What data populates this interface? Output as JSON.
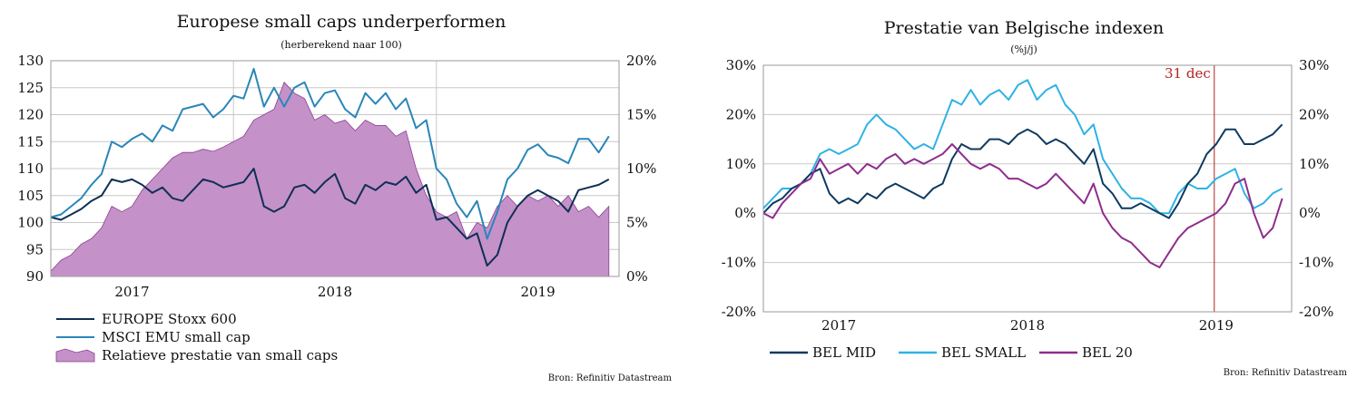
{
  "colors": {
    "stoxx": "#0e2f55",
    "msci": "#2a86b8",
    "relative": "#c591c9",
    "relative_edge": "#8a3f8f",
    "bel_mid": "#0e3a60",
    "bel_small": "#2fb2e6",
    "bel20": "#8e2d8c",
    "marker": "#b22222"
  },
  "chart_data": [
    {
      "type": "line",
      "title": "Europese small caps underperformen",
      "subtitle": "(herberekend naar 100)",
      "xlabel": "",
      "ylabel": "",
      "x_ticks": [
        "2017",
        "2018",
        "2019"
      ],
      "y_ticks_left": [
        "130",
        "125",
        "120",
        "115",
        "110",
        "105",
        "100",
        "95",
        "90"
      ],
      "y_ticks_right": [
        "20%",
        "15%",
        "10%",
        "5%",
        "0%"
      ],
      "ylim_left": [
        90,
        130
      ],
      "ylim_right": [
        0,
        20
      ],
      "xlim": [
        2016.6,
        2019.4
      ],
      "grid": true,
      "legend_position": "bottom-left",
      "series": [
        {
          "name": "EUROPE Stoxx 600",
          "axis": "left",
          "style": "line",
          "x": [
            2016.6,
            2016.65,
            2016.7,
            2016.75,
            2016.8,
            2016.85,
            2016.9,
            2016.95,
            2017.0,
            2017.05,
            2017.1,
            2017.15,
            2017.2,
            2017.25,
            2017.3,
            2017.35,
            2017.4,
            2017.45,
            2017.5,
            2017.55,
            2017.6,
            2017.65,
            2017.7,
            2017.75,
            2017.8,
            2017.85,
            2017.9,
            2017.95,
            2018.0,
            2018.05,
            2018.1,
            2018.15,
            2018.2,
            2018.25,
            2018.3,
            2018.35,
            2018.4,
            2018.45,
            2018.5,
            2018.55,
            2018.6,
            2018.65,
            2018.7,
            2018.75,
            2018.8,
            2018.85,
            2018.9,
            2018.95,
            2019.0,
            2019.05,
            2019.1,
            2019.15,
            2019.2,
            2019.25,
            2019.3,
            2019.35
          ],
          "values": [
            101,
            100.5,
            101.5,
            102.5,
            104,
            105,
            108,
            107.5,
            108,
            107,
            105.5,
            106.5,
            104.5,
            104,
            106,
            108,
            107.5,
            106.5,
            107,
            107.5,
            110,
            103,
            102,
            103,
            106.5,
            107,
            105.5,
            107.5,
            109,
            104.5,
            103.5,
            107,
            106,
            107.5,
            107,
            108.5,
            105.5,
            107,
            100.5,
            101,
            99,
            97,
            98,
            92,
            94,
            100,
            103,
            105,
            106,
            105,
            104,
            102,
            106,
            106.5,
            107,
            108
          ]
        },
        {
          "name": "MSCI EMU small cap",
          "axis": "left",
          "style": "line",
          "x": [
            2016.6,
            2016.65,
            2016.7,
            2016.75,
            2016.8,
            2016.85,
            2016.9,
            2016.95,
            2017.0,
            2017.05,
            2017.1,
            2017.15,
            2017.2,
            2017.25,
            2017.3,
            2017.35,
            2017.4,
            2017.45,
            2017.5,
            2017.55,
            2017.6,
            2017.65,
            2017.7,
            2017.75,
            2017.8,
            2017.85,
            2017.9,
            2017.95,
            2018.0,
            2018.05,
            2018.1,
            2018.15,
            2018.2,
            2018.25,
            2018.3,
            2018.35,
            2018.4,
            2018.45,
            2018.5,
            2018.55,
            2018.6,
            2018.65,
            2018.7,
            2018.75,
            2018.8,
            2018.85,
            2018.9,
            2018.95,
            2019.0,
            2019.05,
            2019.1,
            2019.15,
            2019.2,
            2019.25,
            2019.3,
            2019.35
          ],
          "values": [
            101,
            101.5,
            103,
            104.5,
            107,
            109,
            115,
            114,
            115.5,
            116.5,
            115,
            118,
            117,
            121,
            121.5,
            122,
            119.5,
            121,
            123.5,
            123,
            128.5,
            121.5,
            125,
            121.5,
            125,
            126,
            121.5,
            124,
            124.5,
            121,
            119.5,
            124,
            122,
            124,
            121,
            123,
            117.5,
            119,
            110,
            108,
            103.5,
            101,
            104,
            97,
            102,
            108,
            110,
            113.5,
            114.5,
            112.5,
            112,
            111,
            115.5,
            115.5,
            113,
            116
          ]
        },
        {
          "name": "Relatieve prestatie van small caps",
          "axis": "right",
          "style": "area",
          "x": [
            2016.6,
            2016.65,
            2016.7,
            2016.75,
            2016.8,
            2016.85,
            2016.9,
            2016.95,
            2017.0,
            2017.05,
            2017.1,
            2017.15,
            2017.2,
            2017.25,
            2017.3,
            2017.35,
            2017.4,
            2017.45,
            2017.5,
            2017.55,
            2017.6,
            2017.65,
            2017.7,
            2017.75,
            2017.8,
            2017.85,
            2017.9,
            2017.95,
            2018.0,
            2018.05,
            2018.1,
            2018.15,
            2018.2,
            2018.25,
            2018.3,
            2018.35,
            2018.4,
            2018.45,
            2018.5,
            2018.55,
            2018.6,
            2018.65,
            2018.7,
            2018.75,
            2018.8,
            2018.85,
            2018.9,
            2018.95,
            2019.0,
            2019.05,
            2019.1,
            2019.15,
            2019.2,
            2019.25,
            2019.3,
            2019.35
          ],
          "values": [
            0.5,
            1.5,
            2,
            3,
            3.5,
            4.5,
            6.5,
            6,
            6.5,
            8,
            9,
            10,
            11,
            11.5,
            11.5,
            11.8,
            11.6,
            12,
            12.5,
            13,
            14.5,
            15,
            15.5,
            18,
            17,
            16.5,
            14.5,
            15,
            14.2,
            14.5,
            13.5,
            14.5,
            14,
            14,
            13,
            13.5,
            10,
            7.5,
            6,
            5.5,
            6,
            3.5,
            5,
            4.5,
            6.5,
            7.5,
            6.5,
            7.5,
            7,
            7.5,
            6.5,
            7.5,
            6,
            6.5,
            5.5,
            6.5
          ]
        }
      ]
    },
    {
      "type": "line",
      "title": "Prestatie van Belgische indexen",
      "subtitle": "(%j/j)",
      "xlabel": "",
      "ylabel": "",
      "x_ticks": [
        "2017",
        "2018",
        "2019"
      ],
      "y_ticks_left": [
        "30%",
        "20%",
        "10%",
        "0%",
        "-10%",
        "-20%"
      ],
      "y_ticks_right": [
        "30%",
        "20%",
        "10%",
        "0%",
        "-10%",
        "-20%"
      ],
      "ylim": [
        -20,
        30
      ],
      "xlim": [
        2016.6,
        2019.4
      ],
      "grid": true,
      "legend_position": "bottom",
      "annotation": {
        "label": "31 dec",
        "x": 2018.99
      },
      "series": [
        {
          "name": "BEL MID",
          "x": [
            2016.6,
            2016.65,
            2016.7,
            2016.75,
            2016.8,
            2016.85,
            2016.9,
            2016.95,
            2017.0,
            2017.05,
            2017.1,
            2017.15,
            2017.2,
            2017.25,
            2017.3,
            2017.35,
            2017.4,
            2017.45,
            2017.5,
            2017.55,
            2017.6,
            2017.65,
            2017.7,
            2017.75,
            2017.8,
            2017.85,
            2017.9,
            2017.95,
            2018.0,
            2018.05,
            2018.1,
            2018.15,
            2018.2,
            2018.25,
            2018.3,
            2018.35,
            2018.4,
            2018.45,
            2018.5,
            2018.55,
            2018.6,
            2018.65,
            2018.7,
            2018.75,
            2018.8,
            2018.85,
            2018.9,
            2018.95,
            2019.0,
            2019.05,
            2019.1,
            2019.15,
            2019.2,
            2019.25,
            2019.3,
            2019.35
          ],
          "values": [
            0,
            2,
            3,
            5,
            6,
            8,
            9,
            4,
            2,
            3,
            2,
            4,
            3,
            5,
            6,
            5,
            4,
            3,
            5,
            6,
            11,
            14,
            13,
            13,
            15,
            15,
            14,
            16,
            17,
            16,
            14,
            15,
            14,
            12,
            10,
            13,
            6,
            4,
            1,
            1,
            2,
            1,
            0,
            -1,
            2,
            6,
            8,
            12,
            14,
            17,
            17,
            14,
            14,
            15,
            16,
            18
          ]
        },
        {
          "name": "BEL SMALL",
          "x": [
            2016.6,
            2016.65,
            2016.7,
            2016.75,
            2016.8,
            2016.85,
            2016.9,
            2016.95,
            2017.0,
            2017.05,
            2017.1,
            2017.15,
            2017.2,
            2017.25,
            2017.3,
            2017.35,
            2017.4,
            2017.45,
            2017.5,
            2017.55,
            2017.6,
            2017.65,
            2017.7,
            2017.75,
            2017.8,
            2017.85,
            2017.9,
            2017.95,
            2018.0,
            2018.05,
            2018.1,
            2018.15,
            2018.2,
            2018.25,
            2018.3,
            2018.35,
            2018.4,
            2018.45,
            2018.5,
            2018.55,
            2018.6,
            2018.65,
            2018.7,
            2018.75,
            2018.8,
            2018.85,
            2018.9,
            2018.95,
            2019.0,
            2019.05,
            2019.1,
            2019.15,
            2019.2,
            2019.25,
            2019.3,
            2019.35
          ],
          "values": [
            1,
            3,
            5,
            5,
            6,
            8,
            12,
            13,
            12,
            13,
            14,
            18,
            20,
            18,
            17,
            15,
            13,
            14,
            13,
            18,
            23,
            22,
            25,
            22,
            24,
            25,
            23,
            26,
            27,
            23,
            25,
            26,
            22,
            20,
            16,
            18,
            11,
            8,
            5,
            3,
            3,
            2,
            0,
            0,
            4,
            6,
            5,
            5,
            7,
            8,
            9,
            4,
            1,
            2,
            4,
            5
          ]
        },
        {
          "name": "BEL 20",
          "x": [
            2016.6,
            2016.65,
            2016.7,
            2016.75,
            2016.8,
            2016.85,
            2016.9,
            2016.95,
            2017.0,
            2017.05,
            2017.1,
            2017.15,
            2017.2,
            2017.25,
            2017.3,
            2017.35,
            2017.4,
            2017.45,
            2017.5,
            2017.55,
            2017.6,
            2017.65,
            2017.7,
            2017.75,
            2017.8,
            2017.85,
            2017.9,
            2017.95,
            2018.0,
            2018.05,
            2018.1,
            2018.15,
            2018.2,
            2018.25,
            2018.3,
            2018.35,
            2018.4,
            2018.45,
            2018.5,
            2018.55,
            2018.6,
            2018.65,
            2018.7,
            2018.75,
            2018.8,
            2018.85,
            2018.9,
            2018.95,
            2019.0,
            2019.05,
            2019.1,
            2019.15,
            2019.2,
            2019.25,
            2019.3,
            2019.35
          ],
          "values": [
            0,
            -1,
            2,
            4,
            6,
            7,
            11,
            8,
            9,
            10,
            8,
            10,
            9,
            11,
            12,
            10,
            11,
            10,
            11,
            12,
            14,
            12,
            10,
            9,
            10,
            9,
            7,
            7,
            6,
            5,
            6,
            8,
            6,
            4,
            2,
            6,
            0,
            -3,
            -5,
            -6,
            -8,
            -10,
            -11,
            -8,
            -5,
            -3,
            -2,
            -1,
            0,
            2,
            6,
            7,
            0,
            -5,
            -3,
            3
          ]
        }
      ]
    }
  ],
  "left_legend": [
    {
      "label": "EUROPE Stoxx 600",
      "kind": "line",
      "color_key": "stoxx"
    },
    {
      "label": "MSCI EMU small cap",
      "kind": "line",
      "color_key": "msci"
    },
    {
      "label": "Relatieve prestatie van small caps",
      "kind": "area",
      "color_key": "relative"
    }
  ],
  "right_legend": [
    {
      "label": "BEL MID",
      "color_key": "bel_mid"
    },
    {
      "label": "BEL SMALL",
      "color_key": "bel_small"
    },
    {
      "label": "BEL 20",
      "color_key": "bel20"
    }
  ],
  "source_left": "Bron: Refinitiv Datastream",
  "source_right": "Bron: Refinitiv Datastream"
}
